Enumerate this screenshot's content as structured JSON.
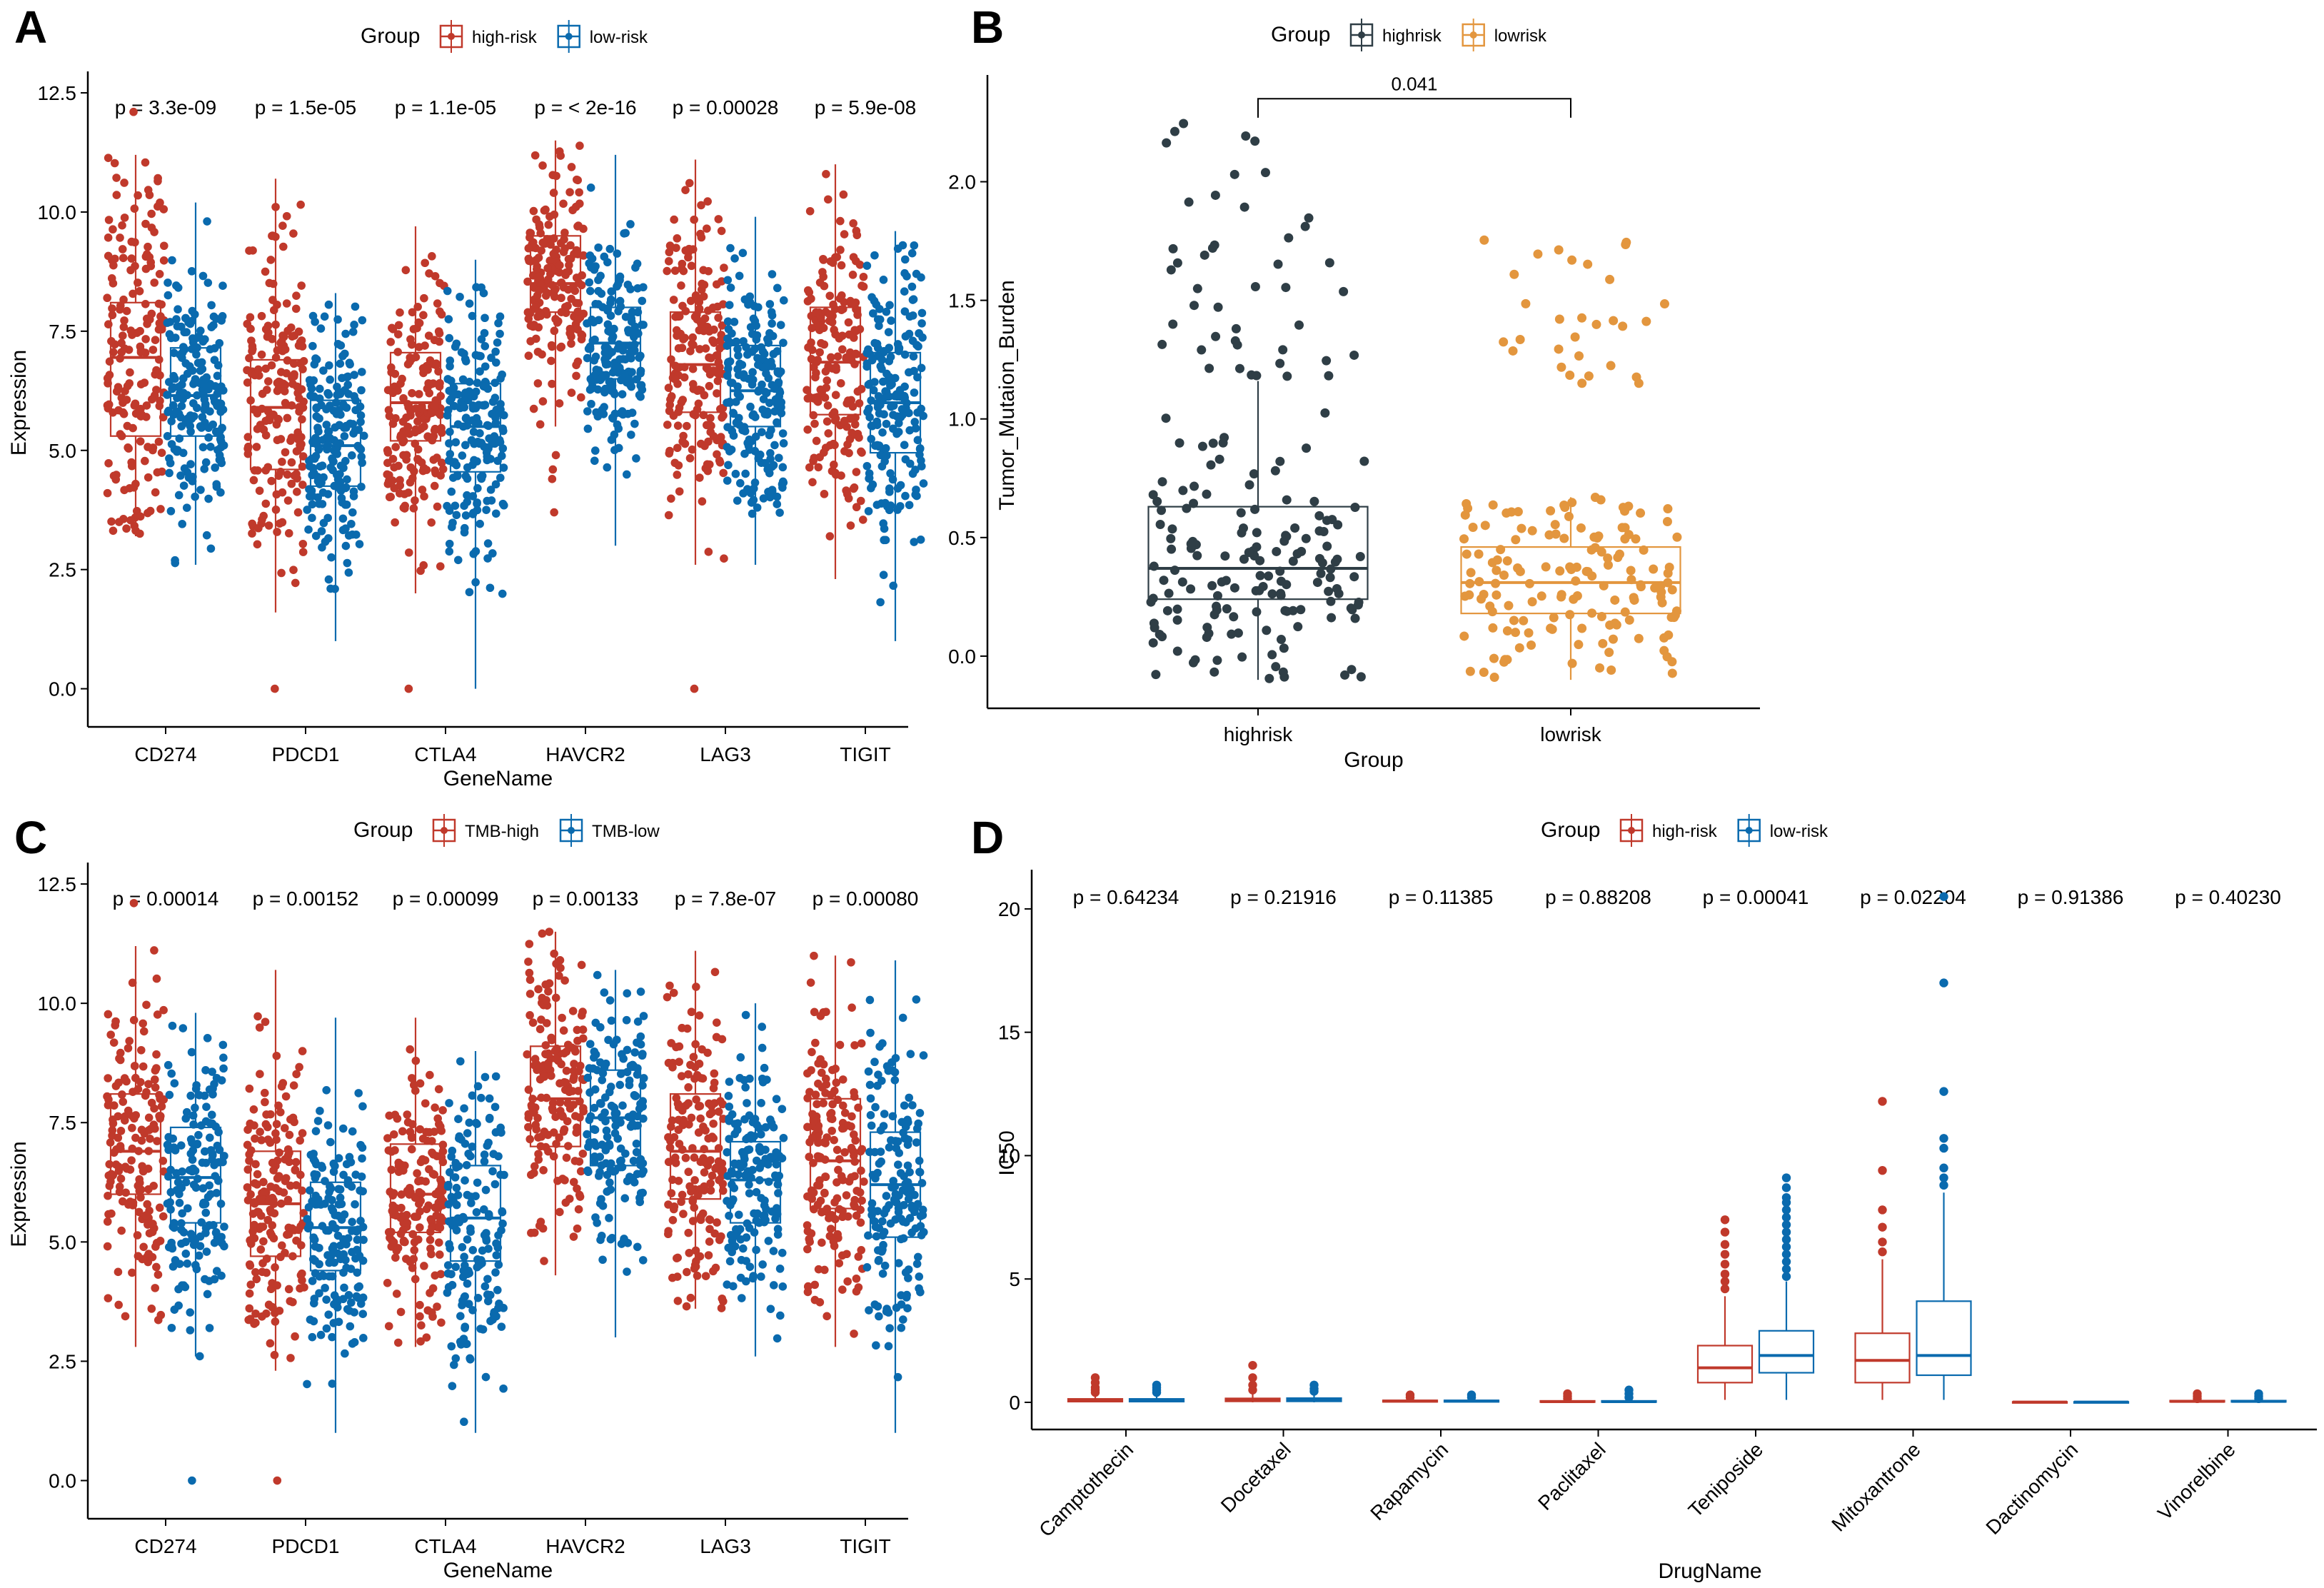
{
  "chart_data": [
    {
      "panel": "A",
      "type": "box-jitter",
      "legend": {
        "title": "Group",
        "entries": [
          "high-risk",
          "low-risk"
        ],
        "colors": [
          "#C0392B",
          "#0A6AAE"
        ]
      },
      "xlabel": "GeneName",
      "ylabel": "Expression",
      "ylim": [
        -0.8,
        12.8
      ],
      "yticks": [
        "0.0",
        "2.5",
        "5.0",
        "7.5",
        "10.0",
        "12.5"
      ],
      "categories": [
        "CD274",
        "PDCD1",
        "CTLA4",
        "HAVCR2",
        "LAG3",
        "TIGIT"
      ],
      "pvalues": [
        "p = 3.3e-09",
        "p = 1.5e-05",
        "p = 1.1e-05",
        "p = < 2e-16",
        "p = 0.00028",
        "p = 5.9e-08"
      ],
      "series": [
        {
          "name": "high-risk",
          "boxes": [
            [
              5.3,
              6.95,
              8.1,
              3.2,
              11.2
            ],
            [
              4.6,
              5.9,
              6.9,
              1.6,
              10.7
            ],
            [
              5.2,
              6.0,
              7.05,
              2.0,
              9.7
            ],
            [
              7.9,
              8.5,
              9.5,
              5.5,
              11.5
            ],
            [
              5.8,
              6.8,
              7.9,
              2.6,
              11.1
            ],
            [
              5.75,
              6.85,
              8.0,
              2.3,
              11.0
            ]
          ],
          "outliers": [
            [
              0,
              12.1
            ],
            [
              1,
              0.0
            ],
            [
              2,
              0
            ],
            [
              3,
              3.7
            ],
            [
              3,
              4.4
            ],
            [
              3,
              4.6
            ],
            [
              3,
              4.9
            ],
            [
              4,
              0
            ]
          ],
          "n": 180
        },
        {
          "name": "low-risk",
          "boxes": [
            [
              5.3,
              6.15,
              7.15,
              2.6,
              10.2
            ],
            [
              4.25,
              5.1,
              6.05,
              1.0,
              8.3
            ],
            [
              4.55,
              5.5,
              6.4,
              0.0,
              9.0
            ],
            [
              6.5,
              7.25,
              8.0,
              3.0,
              11.2
            ],
            [
              5.5,
              6.25,
              7.2,
              2.6,
              9.9
            ],
            [
              4.95,
              6.0,
              7.05,
              1.0,
              9.6
            ]
          ],
          "outliers": [],
          "n": 190
        }
      ]
    },
    {
      "panel": "B",
      "type": "box-jitter",
      "legend": {
        "title": "Group",
        "entries": [
          "highrisk",
          "lowrisk"
        ],
        "colors": [
          "#2F3E46",
          "#E3963E"
        ]
      },
      "xlabel": "Group",
      "ylabel": "Tumor_Mutaion_Burden",
      "ylim": [
        -0.22,
        2.42
      ],
      "yticks": [
        "0.0",
        "0.5",
        "1.0",
        "1.5",
        "2.0"
      ],
      "categories": [
        "highrisk",
        "lowrisk"
      ],
      "bracket_label": "0.041",
      "boxes": [
        [
          0.24,
          0.37,
          0.63,
          -0.1,
          1.16
        ],
        [
          0.18,
          0.31,
          0.46,
          -0.1,
          0.67
        ]
      ],
      "outlier_clusters": [
        [
          1.18,
          2.25,
          45
        ],
        [
          1.15,
          1.78,
          30
        ]
      ],
      "n": 150
    },
    {
      "panel": "C",
      "type": "box-jitter",
      "legend": {
        "title": "Group",
        "entries": [
          "TMB-high",
          "TMB-low"
        ],
        "colors": [
          "#C0392B",
          "#0A6AAE"
        ]
      },
      "xlabel": "GeneName",
      "ylabel": "Expression",
      "ylim": [
        -0.8,
        12.8
      ],
      "yticks": [
        "0.0",
        "2.5",
        "5.0",
        "7.5",
        "10.0",
        "12.5"
      ],
      "categories": [
        "CD274",
        "PDCD1",
        "CTLA4",
        "HAVCR2",
        "LAG3",
        "TIGIT"
      ],
      "pvalues": [
        "p = 0.00014",
        "p = 0.00152",
        "p = 0.00099",
        "p = 0.00133",
        "p = 7.8e-07",
        "p = 0.00080"
      ],
      "series": [
        {
          "name": "TMB-high",
          "boxes": [
            [
              6.0,
              6.9,
              8.1,
              2.8,
              11.2
            ],
            [
              4.7,
              5.8,
              6.9,
              2.3,
              10.7
            ],
            [
              5.2,
              6.0,
              7.05,
              2.8,
              9.7
            ],
            [
              7.0,
              8.0,
              9.1,
              4.3,
              11.5
            ],
            [
              5.9,
              6.9,
              8.1,
              3.6,
              11.1
            ],
            [
              5.7,
              6.7,
              8.0,
              2.8,
              11.0
            ]
          ],
          "outliers": [
            [
              0,
              12.1
            ],
            [
              1,
              0.0
            ]
          ],
          "n": 170
        },
        {
          "name": "TMB-low",
          "boxes": [
            [
              5.4,
              6.35,
              7.4,
              2.6,
              9.8
            ],
            [
              4.4,
              5.3,
              6.25,
              1.0,
              9.7
            ],
            [
              4.6,
              5.5,
              6.6,
              1.0,
              9.0
            ],
            [
              6.6,
              7.6,
              8.6,
              3.0,
              10.7
            ],
            [
              5.4,
              6.3,
              7.1,
              2.6,
              10.0
            ],
            [
              5.1,
              6.2,
              7.3,
              1.0,
              10.9
            ]
          ],
          "outliers": [
            [
              0,
              0.0
            ]
          ],
          "n": 160
        }
      ]
    },
    {
      "panel": "D",
      "type": "box",
      "legend": {
        "title": "Group",
        "entries": [
          "high-risk",
          "low-risk"
        ],
        "colors": [
          "#C0392B",
          "#0A6AAE"
        ]
      },
      "xlabel": "DrugName",
      "ylabel": "IC50",
      "ylim": [
        -1.1,
        21.3
      ],
      "yticks": [
        "0",
        "5",
        "10",
        "15",
        "20"
      ],
      "categories": [
        "Camptothecin",
        "Docetaxel",
        "Rapamycin",
        "Paclitaxel",
        "Teniposide",
        "Mitoxantrone",
        "Dactinomycin",
        "Vinorelbine"
      ],
      "pvalues": [
        "p = 0.64234",
        "p = 0.21916",
        "p = 0.11385",
        "p = 0.88208",
        "p = 0.00041",
        "p = 0.02204",
        "p = 0.91386",
        "p = 0.40230"
      ],
      "series": [
        {
          "name": "high-risk",
          "boxes": [
            [
              0.03,
              0.08,
              0.14,
              0,
              0.3
            ],
            [
              0.04,
              0.09,
              0.16,
              0,
              0.35
            ],
            [
              0.02,
              0.05,
              0.08,
              0,
              0.15
            ],
            [
              0.01,
              0.03,
              0.06,
              0,
              0.1
            ],
            [
              0.8,
              1.4,
              2.3,
              0.1,
              4.3
            ],
            [
              0.8,
              1.7,
              2.8,
              0.1,
              5.8
            ],
            [
              0.0,
              0.01,
              0.02,
              0,
              0.04
            ],
            [
              0.02,
              0.04,
              0.07,
              0,
              0.12
            ]
          ],
          "outliers": [
            [
              0,
              0.4
            ],
            [
              0,
              0.5
            ],
            [
              0,
              0.6
            ],
            [
              0,
              0.8
            ],
            [
              0,
              1.0
            ],
            [
              1,
              0.5
            ],
            [
              1,
              0.7
            ],
            [
              1,
              1.0
            ],
            [
              1,
              1.5
            ],
            [
              2,
              0.2
            ],
            [
              2,
              0.3
            ],
            [
              3,
              0.15
            ],
            [
              3,
              0.25
            ],
            [
              3,
              0.35
            ],
            [
              4,
              4.6
            ],
            [
              4,
              4.9
            ],
            [
              4,
              5.2
            ],
            [
              4,
              5.6
            ],
            [
              4,
              6.0
            ],
            [
              4,
              6.4
            ],
            [
              4,
              6.9
            ],
            [
              4,
              7.4
            ],
            [
              5,
              6.1
            ],
            [
              5,
              6.5
            ],
            [
              5,
              7.1
            ],
            [
              5,
              7.8
            ],
            [
              5,
              9.4
            ],
            [
              5,
              12.2
            ],
            [
              7,
              0.15
            ],
            [
              7,
              0.25
            ],
            [
              7,
              0.35
            ]
          ]
        },
        {
          "name": "low-risk",
          "boxes": [
            [
              0.03,
              0.08,
              0.14,
              0,
              0.3
            ],
            [
              0.04,
              0.1,
              0.17,
              0,
              0.35
            ],
            [
              0.02,
              0.05,
              0.08,
              0,
              0.15
            ],
            [
              0.01,
              0.03,
              0.06,
              0,
              0.1
            ],
            [
              1.2,
              1.9,
              2.9,
              0.1,
              4.9
            ],
            [
              1.1,
              1.9,
              4.1,
              0.1,
              8.5
            ],
            [
              0.0,
              0.01,
              0.02,
              0,
              0.04
            ],
            [
              0.02,
              0.04,
              0.07,
              0,
              0.12
            ]
          ],
          "outliers": [
            [
              0,
              0.4
            ],
            [
              0,
              0.5
            ],
            [
              0,
              0.6
            ],
            [
              0,
              0.7
            ],
            [
              1,
              0.45
            ],
            [
              1,
              0.55
            ],
            [
              1,
              0.7
            ],
            [
              2,
              0.2
            ],
            [
              2,
              0.3
            ],
            [
              3,
              0.2
            ],
            [
              3,
              0.35
            ],
            [
              3,
              0.5
            ],
            [
              4,
              5.1
            ],
            [
              4,
              5.4
            ],
            [
              4,
              5.7
            ],
            [
              4,
              6.0
            ],
            [
              4,
              6.3
            ],
            [
              4,
              6.6
            ],
            [
              4,
              6.9
            ],
            [
              4,
              7.2
            ],
            [
              4,
              7.5
            ],
            [
              4,
              7.8
            ],
            [
              4,
              8.1
            ],
            [
              4,
              8.3
            ],
            [
              4,
              8.7
            ],
            [
              4,
              9.1
            ],
            [
              5,
              8.8
            ],
            [
              5,
              9.1
            ],
            [
              5,
              9.5
            ],
            [
              5,
              10.3
            ],
            [
              5,
              10.7
            ],
            [
              5,
              12.6
            ],
            [
              5,
              17.0
            ],
            [
              5,
              20.5
            ],
            [
              7,
              0.15
            ],
            [
              7,
              0.25
            ],
            [
              7,
              0.35
            ]
          ]
        }
      ]
    }
  ]
}
